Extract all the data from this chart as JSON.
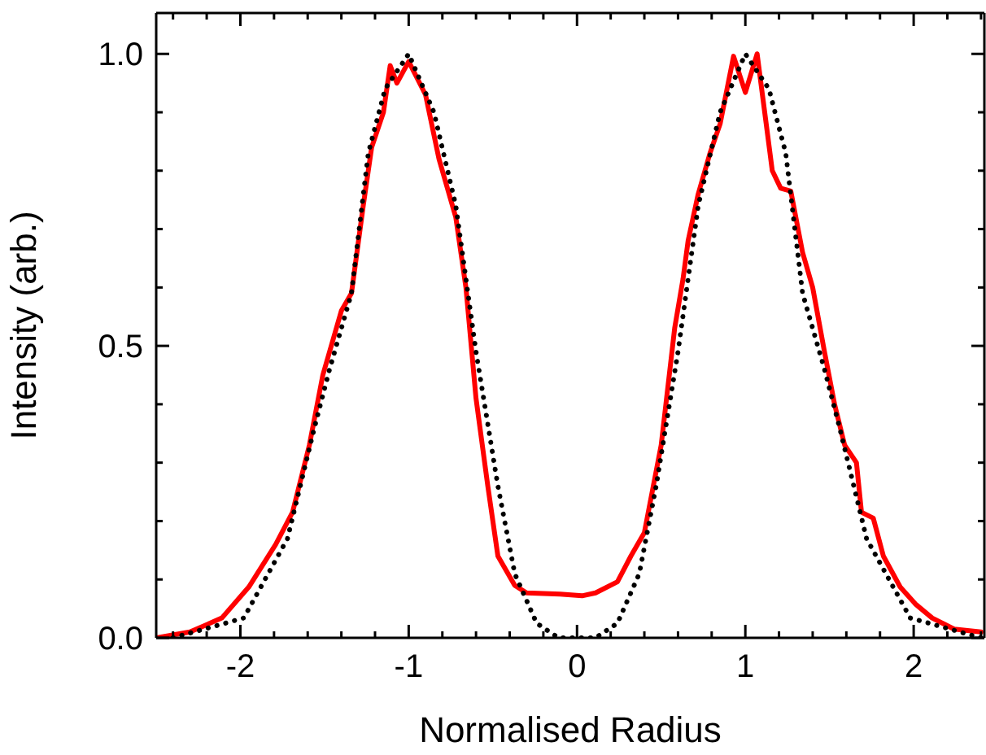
{
  "chart_data": {
    "type": "line",
    "xlabel": "Normalised Radius",
    "ylabel": "Intensity (arb.)",
    "xlim": [
      -2.5,
      2.42
    ],
    "ylim": [
      0,
      1.07
    ],
    "xticks": [
      {
        "value": -2.4,
        "label": null
      },
      {
        "value": -2.2,
        "label": null
      },
      -2,
      {
        "value": -1.8,
        "label": null
      },
      {
        "value": -1.6,
        "label": null
      },
      {
        "value": -1.4,
        "label": null
      },
      {
        "value": -1.2,
        "label": null
      },
      -1,
      {
        "value": -0.8,
        "label": null
      },
      {
        "value": -0.6,
        "label": null
      },
      {
        "value": -0.4,
        "label": null
      },
      {
        "value": -0.2,
        "label": null
      },
      0,
      {
        "value": 0.2,
        "label": null
      },
      {
        "value": 0.4,
        "label": null
      },
      {
        "value": 0.6,
        "label": null
      },
      {
        "value": 0.8,
        "label": null
      },
      1,
      {
        "value": 1.2,
        "label": null
      },
      {
        "value": 1.4,
        "label": null
      },
      {
        "value": 1.6,
        "label": null
      },
      {
        "value": 1.8,
        "label": null
      },
      2,
      {
        "value": 2.2,
        "label": null
      },
      {
        "value": 2.4,
        "label": null
      }
    ],
    "yticks": [
      {
        "value": 0,
        "label": "0.0"
      },
      {
        "value": 0.1,
        "label": null
      },
      {
        "value": 0.2,
        "label": null
      },
      {
        "value": 0.3,
        "label": null
      },
      {
        "value": 0.4,
        "label": null
      },
      {
        "value": 0.5,
        "label": "0.5"
      },
      {
        "value": 0.6,
        "label": null
      },
      {
        "value": 0.7,
        "label": null
      },
      {
        "value": 0.8,
        "label": null
      },
      {
        "value": 0.9,
        "label": null
      },
      {
        "value": 1,
        "label": "1.0"
      }
    ],
    "grid": false,
    "legend": false,
    "marker": "none",
    "series": [
      {
        "color": "#ff0000",
        "line_style": "solid",
        "x": [
          -2.5,
          -2.3,
          -2.11,
          -1.95,
          -1.79,
          -1.69,
          -1.59,
          -1.51,
          -1.4,
          -1.34,
          -1.27,
          -1.22,
          -1.15,
          -1.11,
          -1.07,
          -1.0,
          -0.9,
          -0.82,
          -0.72,
          -0.66,
          -0.6,
          -0.53,
          -0.47,
          -0.37,
          -0.3,
          -0.1,
          0.03,
          0.11,
          0.24,
          0.32,
          0.4,
          0.5,
          0.58,
          0.63,
          0.66,
          0.72,
          0.79,
          0.85,
          0.93,
          1.0,
          1.07,
          1.16,
          1.21,
          1.27,
          1.34,
          1.4,
          1.47,
          1.53,
          1.59,
          1.66,
          1.69,
          1.76,
          1.82,
          1.92,
          2.01,
          2.11,
          2.24,
          2.4
        ],
        "values": [
          0.0,
          0.01,
          0.034,
          0.087,
          0.16,
          0.215,
          0.33,
          0.45,
          0.56,
          0.59,
          0.74,
          0.84,
          0.9,
          0.98,
          0.95,
          0.987,
          0.93,
          0.82,
          0.72,
          0.6,
          0.41,
          0.26,
          0.14,
          0.09,
          0.077,
          0.075,
          0.072,
          0.077,
          0.096,
          0.14,
          0.18,
          0.33,
          0.53,
          0.615,
          0.68,
          0.76,
          0.83,
          0.88,
          0.996,
          0.934,
          1.0,
          0.8,
          0.77,
          0.765,
          0.66,
          0.6,
          0.49,
          0.4,
          0.33,
          0.3,
          0.215,
          0.205,
          0.14,
          0.087,
          0.058,
          0.034,
          0.015,
          0.01
        ]
      },
      {
        "color": "#000000",
        "line_style": "dotted",
        "x": [
          -2.4,
          -1.98,
          -1.72,
          -1.56,
          -1.47,
          -1.34,
          -1.24,
          -1.14,
          -1.0,
          -0.85,
          -0.72,
          -0.6,
          -0.47,
          -0.37,
          -0.24,
          -0.11,
          0.0,
          0.11,
          0.24,
          0.37,
          0.47,
          0.6,
          0.72,
          0.85,
          1.0,
          1.14,
          1.24,
          1.34,
          1.47,
          1.56,
          1.72,
          1.98,
          2.4
        ],
        "values": [
          0.0,
          0.034,
          0.17,
          0.36,
          0.46,
          0.59,
          0.83,
          0.94,
          1.0,
          0.9,
          0.74,
          0.49,
          0.26,
          0.11,
          0.025,
          0.0,
          0.0,
          0.0,
          0.025,
          0.11,
          0.26,
          0.49,
          0.74,
          0.9,
          1.0,
          0.94,
          0.83,
          0.59,
          0.46,
          0.36,
          0.17,
          0.034,
          0.0
        ]
      }
    ]
  }
}
